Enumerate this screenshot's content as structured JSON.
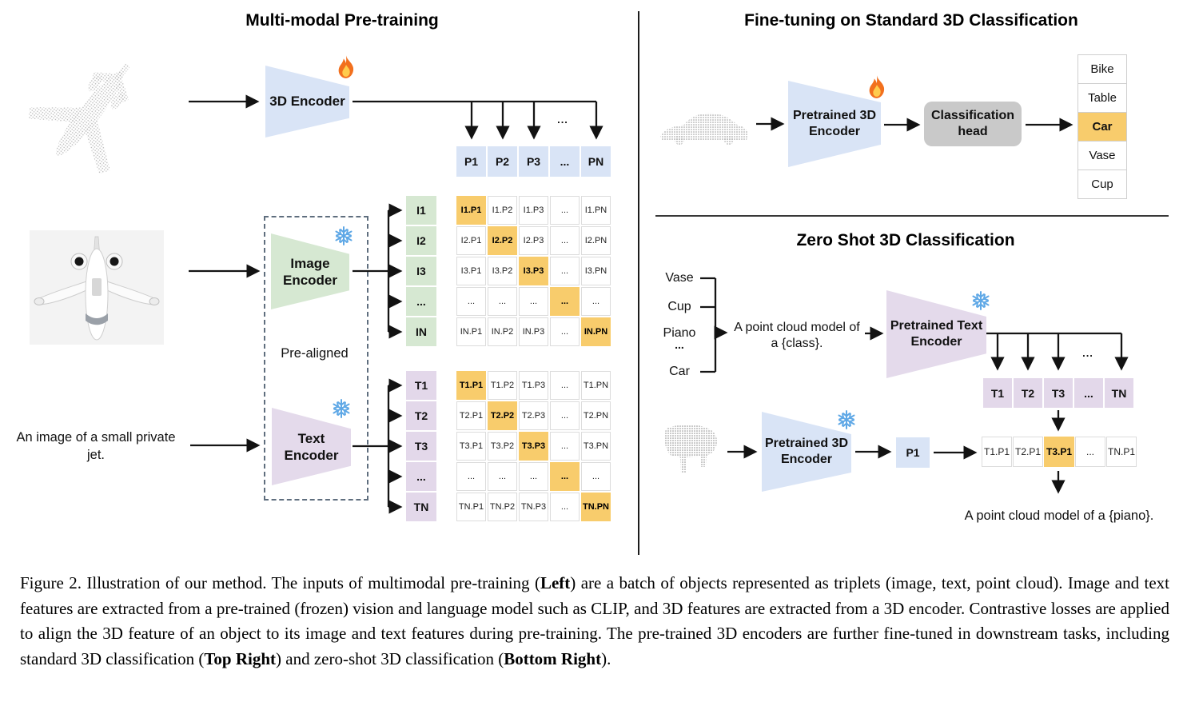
{
  "left": {
    "title": "Multi-modal Pre-training",
    "encoder_3d": "3D Encoder",
    "image_encoder": "Image Encoder",
    "text_encoder": "Text Encoder",
    "pre_aligned": "Pre-aligned",
    "image_caption": "An image of a small private jet.",
    "dots": "...",
    "p_row": [
      "P1",
      "P2",
      "P3",
      "...",
      "PN"
    ],
    "image_matrix": {
      "labels": [
        "I1",
        "I2",
        "I3",
        "...",
        "IN"
      ],
      "rows": [
        [
          "I1.P1",
          "I1.P2",
          "I1.P3",
          "...",
          "I1.PN"
        ],
        [
          "I2.P1",
          "I2.P2",
          "I2.P3",
          "...",
          "I2.PN"
        ],
        [
          "I3.P1",
          "I3.P2",
          "I3.P3",
          "...",
          "I3.PN"
        ],
        [
          "...",
          "...",
          "...",
          "...",
          "..."
        ],
        [
          "IN.P1",
          "IN.P2",
          "IN.P3",
          "...",
          "IN.PN"
        ]
      ],
      "highlight": "diagonal"
    },
    "text_matrix": {
      "labels": [
        "T1",
        "T2",
        "T3",
        "...",
        "TN"
      ],
      "rows": [
        [
          "T1.P1",
          "T1.P2",
          "T1.P3",
          "...",
          "T1.PN"
        ],
        [
          "T2.P1",
          "T2.P2",
          "T2.P3",
          "...",
          "T2.PN"
        ],
        [
          "T3.P1",
          "T3.P2",
          "T3.P3",
          "...",
          "T3.PN"
        ],
        [
          "...",
          "...",
          "...",
          "...",
          "..."
        ],
        [
          "TN.P1",
          "TN.P2",
          "TN.P3",
          "...",
          "TN.PN"
        ]
      ],
      "highlight": "diagonal"
    }
  },
  "top_right": {
    "title": "Fine-tuning on Standard 3D Classification",
    "encoder": "Pretrained 3D Encoder",
    "head": "Classification head",
    "classes": [
      "Bike",
      "Table",
      "Car",
      "Vase",
      "Cup"
    ],
    "highlight_index": 2
  },
  "bottom_right": {
    "title": "Zero Shot 3D Classification",
    "classes": [
      "Vase",
      "Cup",
      "Piano",
      "...",
      "Car"
    ],
    "prompt_line1": "A point cloud model of",
    "prompt_line2": "a {class}.",
    "text_encoder": "Pretrained Text Encoder",
    "encoder_3d": "Pretrained 3D Encoder",
    "p1": "P1",
    "dots": "...",
    "t_row": [
      "T1",
      "T2",
      "T3",
      "...",
      "TN"
    ],
    "sim_row": [
      "T1.P1",
      "T2.P1",
      "T3.P1",
      "...",
      "TN.P1"
    ],
    "sim_highlight_index": 2,
    "output_text": "A point cloud model of a {piano}."
  },
  "caption": {
    "segments": [
      {
        "text": "Figure 2. Illustration of our method. The inputs of multimodal pre-training (",
        "bold": false
      },
      {
        "text": "Left",
        "bold": true
      },
      {
        "text": ") are a batch of objects represented as triplets (image, text, point cloud). Image and text features are extracted from a pre-trained (frozen) vision and language model such as CLIP, and 3D features are extracted from a 3D encoder. Contrastive losses are applied to align the 3D feature of an object to its image and text features during pre-training. The pre-trained 3D encoders are further fine-tuned in downstream tasks, including standard 3D classification (",
        "bold": false
      },
      {
        "text": "Top Right",
        "bold": true
      },
      {
        "text": ") and zero-shot 3D classification (",
        "bold": false
      },
      {
        "text": "Bottom Right",
        "bold": true
      },
      {
        "text": ").",
        "bold": false
      }
    ]
  },
  "colors": {
    "highlight_orange": "#f8cc6c",
    "encoder_blue": "#d9e4f6",
    "encoder_green": "#d6e8d2",
    "encoder_purple": "#e4daeb",
    "head_gray": "#c9c9c9",
    "snowflake_blue": "#5fa8e6",
    "flame_orange": "#f2701e"
  }
}
